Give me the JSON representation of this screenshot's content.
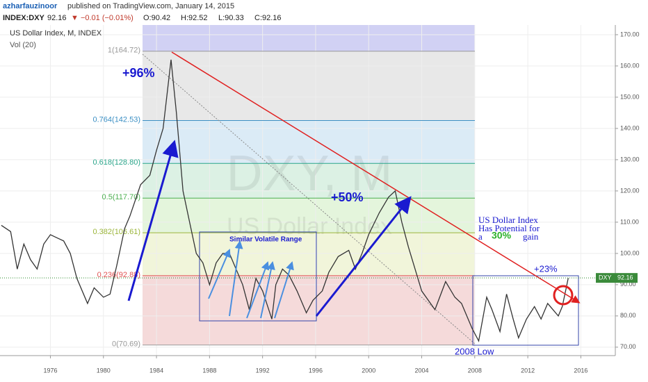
{
  "header": {
    "author": "azharfauzinoor",
    "published": "published on TradingView.com, January 14, 2015",
    "symbol": "INDEX:DXY",
    "last": "92.16",
    "change": "▼ −0.01 (−0.01%)",
    "ohlc": [
      "O:90.42",
      "H:92.52",
      "L:90.33",
      "C:92.16"
    ]
  },
  "chart_data": {
    "type": "line",
    "title": "US Dollar Index, M, INDEX",
    "subtitle": "Vol (20)",
    "watermark": [
      "DXY, M",
      "US Dollar Index"
    ],
    "x": [
      1972.3,
      1973.0,
      1973.5,
      1974.0,
      1974.5,
      1975.0,
      1975.5,
      1976.0,
      1976.5,
      1977.0,
      1977.5,
      1978.0,
      1978.8,
      1979.3,
      1980.0,
      1980.5,
      1981.0,
      1981.6,
      1982.0,
      1982.8,
      1983.5,
      1984.0,
      1984.5,
      1985.1,
      1985.5,
      1986.0,
      1986.5,
      1987.0,
      1987.5,
      1988.0,
      1988.5,
      1989.0,
      1989.5,
      1990.0,
      1990.5,
      1991.0,
      1991.5,
      1992.0,
      1992.7,
      1993.0,
      1993.5,
      1994.0,
      1994.6,
      1995.3,
      1995.8,
      1996.5,
      1997.0,
      1997.7,
      1998.5,
      1999.0,
      1999.5,
      2000.0,
      2000.8,
      2001.5,
      2002.0,
      2002.5,
      2003.0,
      2003.5,
      2004.0,
      2005.0,
      2005.8,
      2006.5,
      2007.0,
      2007.8,
      2008.3,
      2008.9,
      2009.3,
      2009.9,
      2010.4,
      2010.9,
      2011.3,
      2011.9,
      2012.5,
      2013.0,
      2013.5,
      2014.3,
      2014.6,
      2014.9,
      2015.05
    ],
    "series": [
      {
        "name": "DXY",
        "color": "#333333",
        "values": [
          109,
          107,
          95,
          103,
          98,
          95,
          103,
          106,
          105,
          104,
          100,
          92,
          84,
          89,
          86,
          87,
          96,
          108,
          112,
          122,
          125,
          133,
          140,
          162,
          145,
          120,
          110,
          100,
          97,
          90,
          97,
          100,
          100,
          95,
          90,
          82,
          92,
          88,
          79,
          90,
          95,
          93,
          88,
          81,
          85,
          88,
          94,
          99,
          101,
          95,
          100,
          106,
          113,
          118,
          120,
          110,
          102,
          95,
          88,
          82,
          91,
          86,
          84,
          76,
          72,
          86,
          82,
          75,
          87,
          79,
          73,
          79,
          83,
          79,
          84,
          80,
          83,
          89,
          92.16
        ]
      }
    ],
    "price_tag": {
      "name": "DXY",
      "value": 92.16,
      "label": "92.16"
    },
    "fib": [
      {
        "value": 164.72,
        "label": "1(164.72)",
        "color": "#999999",
        "zone": "#c9c9f2"
      },
      {
        "value": 142.53,
        "label": "0.764(142.53)",
        "color": "#3b8fc4",
        "zone": "#e4e4e4"
      },
      {
        "value": 128.8,
        "label": "0.618(128.80)",
        "color": "#2aa58a",
        "zone": "#d5e7f4"
      },
      {
        "value": 117.7,
        "label": "0.5(117.70)",
        "color": "#4caf50",
        "zone": "#d6efdf"
      },
      {
        "value": 106.61,
        "label": "0.382(106.61)",
        "color": "#9bb53a",
        "zone": "#dff3d6"
      },
      {
        "value": 92.88,
        "label": "0.236(92.88)",
        "color": "#e05050",
        "zone": "#eef3d4"
      },
      {
        "value": 70.69,
        "label": "0(70.69)",
        "color": "#999999",
        "zone": "#f3d4d4"
      }
    ],
    "annotations": {
      "gain96": "+96%",
      "gain50": "+50%",
      "range": "Similar Volatile Range",
      "potential": [
        "US Dollar Index",
        "Has Potential for",
        "a",
        "30%",
        "gain"
      ],
      "gain23": "+23%",
      "low": "2008 Low"
    },
    "xlim": [
      1972.2,
      2018.6
    ],
    "ylim": [
      67.3,
      173.1
    ],
    "xticks": [
      1976,
      1980,
      1984,
      1988,
      1992,
      1996,
      2000,
      2004,
      2008,
      2012,
      2016
    ],
    "yticks": [
      {
        "value": 70,
        "label": "70.00"
      },
      {
        "value": 80,
        "label": "80.00"
      },
      {
        "value": 90,
        "label": "90.00"
      },
      {
        "value": 100,
        "label": "100.00"
      },
      {
        "value": 110,
        "label": "110.00"
      },
      {
        "value": 120,
        "label": "120.00"
      },
      {
        "value": 130,
        "label": "130.00"
      },
      {
        "value": 140,
        "label": "140.00"
      },
      {
        "value": 150,
        "label": "150.00"
      },
      {
        "value": 160,
        "label": "160.00"
      },
      {
        "value": 170,
        "label": "170.00"
      }
    ],
    "grid": true
  }
}
